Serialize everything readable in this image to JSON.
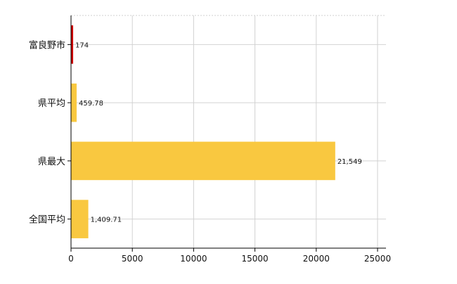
{
  "chart_data": {
    "type": "bar",
    "orientation": "horizontal",
    "categories": [
      "富良野市",
      "県平均",
      "県最大",
      "全国平均"
    ],
    "values": [
      174,
      459.78,
      21549,
      1409.71
    ],
    "value_labels": [
      "174",
      "459.78",
      "21,549",
      "1,409.71"
    ],
    "bar_colors": [
      "#cc0000",
      "#f9c840",
      "#f9c840",
      "#f9c840"
    ],
    "xlim": [
      0,
      25000
    ],
    "x_ticks": [
      0,
      5000,
      10000,
      15000,
      20000,
      25000
    ],
    "x_tick_labels": [
      "0",
      "5000",
      "10000",
      "15000",
      "20000",
      "25000"
    ],
    "grid": true,
    "legend": "none",
    "title": "",
    "xlabel": "",
    "ylabel": ""
  }
}
